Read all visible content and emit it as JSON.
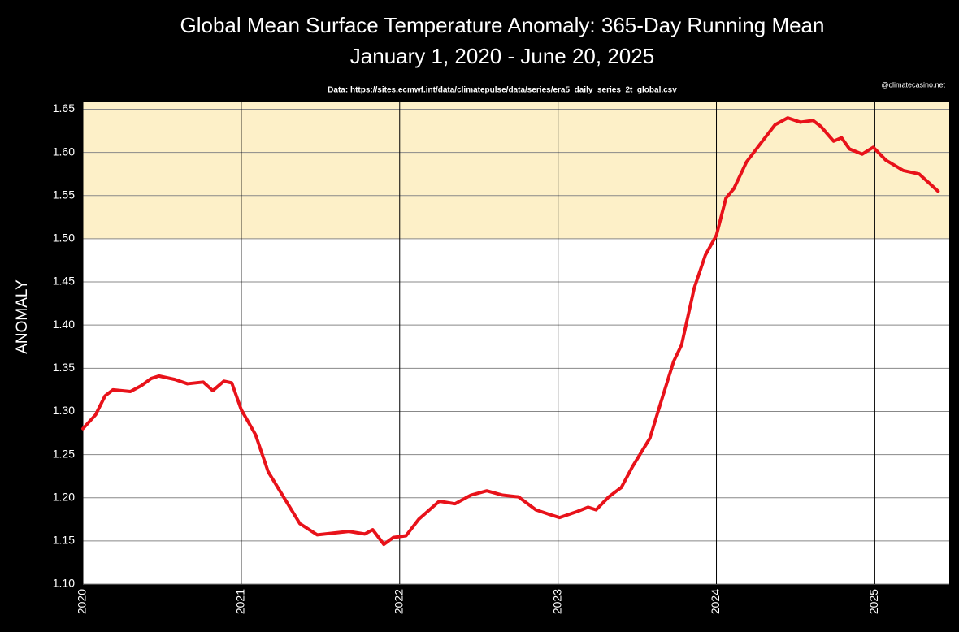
{
  "chart_data": {
    "type": "line",
    "title": "Global Mean Surface Temperature Anomaly: 365-Day Running Mean",
    "subtitle": "January 1, 2020 - June 20, 2025",
    "source": "Data: https://sites.ecmwf.int/data/climatepulse/data/series/era5_daily_series_2t_global.csv",
    "credit": "@climatecasino.net",
    "y_label": "ANOMALY",
    "x": [
      2020.0,
      2020.08,
      2020.14,
      2020.19,
      2020.3,
      2020.37,
      2020.43,
      2020.48,
      2020.58,
      2020.66,
      2020.76,
      2020.82,
      2020.89,
      2020.94,
      2021.0,
      2021.09,
      2021.17,
      2021.27,
      2021.37,
      2021.48,
      2021.58,
      2021.68,
      2021.78,
      2021.83,
      2021.9,
      2021.96,
      2022.04,
      2022.12,
      2022.25,
      2022.35,
      2022.45,
      2022.55,
      2022.65,
      2022.75,
      2022.86,
      2022.94,
      2023.01,
      2023.12,
      2023.19,
      2023.24,
      2023.32,
      2023.4,
      2023.47,
      2023.58,
      2023.65,
      2023.73,
      2023.78,
      2023.86,
      2023.93,
      2024.0,
      2024.06,
      2024.11,
      2024.19,
      2024.29,
      2024.37,
      2024.45,
      2024.53,
      2024.61,
      2024.66,
      2024.74,
      2024.79,
      2024.84,
      2024.92,
      2024.99,
      2025.07,
      2025.18,
      2025.28,
      2025.4
    ],
    "series": [
      {
        "name": "365-Day Running Mean",
        "color": "#e8121a",
        "values": [
          1.28,
          1.296,
          1.318,
          1.325,
          1.323,
          1.33,
          1.338,
          1.341,
          1.337,
          1.332,
          1.334,
          1.324,
          1.335,
          1.333,
          1.302,
          1.273,
          1.23,
          1.2,
          1.17,
          1.157,
          1.159,
          1.161,
          1.158,
          1.163,
          1.146,
          1.154,
          1.156,
          1.175,
          1.196,
          1.193,
          1.203,
          1.208,
          1.203,
          1.201,
          1.186,
          1.181,
          1.177,
          1.184,
          1.189,
          1.186,
          1.201,
          1.212,
          1.236,
          1.269,
          1.311,
          1.358,
          1.377,
          1.443,
          1.481,
          1.504,
          1.547,
          1.558,
          1.589,
          1.613,
          1.632,
          1.64,
          1.635,
          1.637,
          1.63,
          1.613,
          1.617,
          1.604,
          1.598,
          1.606,
          1.591,
          1.579,
          1.575,
          1.555
        ]
      }
    ],
    "xlim": [
      2020,
      2025.47
    ],
    "xticks": [
      2020,
      2021,
      2022,
      2023,
      2024,
      2025
    ],
    "ylim": [
      1.1,
      1.658
    ],
    "yticks": [
      {
        "value": 1.1,
        "label": "1.10"
      },
      1.15,
      {
        "value": 1.2,
        "label": "1.20"
      },
      1.25,
      {
        "value": 1.3,
        "label": "1.30"
      },
      1.35,
      {
        "value": 1.4,
        "label": "1.40"
      },
      1.45,
      {
        "value": 1.5,
        "label": "1.50"
      },
      1.55,
      {
        "value": 1.6,
        "label": "1.60"
      },
      1.65
    ],
    "shade_above": 1.5,
    "shade_color": "#fdf0c8",
    "grid": true
  }
}
